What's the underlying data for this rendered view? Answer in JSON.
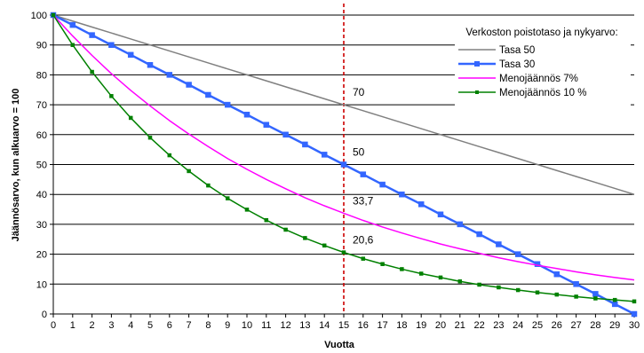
{
  "chart_data": {
    "type": "line",
    "xlabel": "Vuotta",
    "ylabel": "Jäännösarvo, kun alkuarvo = 100",
    "xlim": [
      0,
      30
    ],
    "ylim": [
      0,
      100
    ],
    "x_ticks": [
      0,
      1,
      2,
      3,
      4,
      5,
      6,
      7,
      8,
      9,
      10,
      11,
      12,
      13,
      14,
      15,
      16,
      17,
      18,
      19,
      20,
      21,
      22,
      23,
      24,
      25,
      26,
      27,
      28,
      29,
      30
    ],
    "y_ticks": [
      0,
      10,
      20,
      30,
      40,
      50,
      60,
      70,
      80,
      90,
      100
    ],
    "grid": "horizontal",
    "legend": {
      "title": "Verkoston poistotaso ja nykyarvo:",
      "position": "top-right"
    },
    "x": [
      0,
      1,
      2,
      3,
      4,
      5,
      6,
      7,
      8,
      9,
      10,
      11,
      12,
      13,
      14,
      15,
      16,
      17,
      18,
      19,
      20,
      21,
      22,
      23,
      24,
      25,
      26,
      27,
      28,
      29,
      30
    ],
    "series": [
      {
        "name": "Tasa 50",
        "color": "#808080",
        "marker": "none",
        "values": [
          100,
          98,
          96,
          94,
          92,
          90,
          88,
          86,
          84,
          82,
          80,
          78,
          76,
          74,
          72,
          70,
          68,
          66,
          64,
          62,
          60,
          58,
          56,
          54,
          52,
          50,
          48,
          46,
          44,
          42,
          40
        ]
      },
      {
        "name": "Tasa 30",
        "color": "#3366ff",
        "marker": "square",
        "values": [
          100,
          96.7,
          93.3,
          90,
          86.7,
          83.3,
          80,
          76.7,
          73.3,
          70,
          66.7,
          63.3,
          60,
          56.7,
          53.3,
          50,
          46.7,
          43.3,
          40,
          36.7,
          33.3,
          30,
          26.7,
          23.3,
          20,
          16.7,
          13.3,
          10,
          6.7,
          3.3,
          0
        ]
      },
      {
        "name": "Menojäännös 7%",
        "color": "#ff00ff",
        "marker": "none",
        "values": [
          100,
          93,
          86.5,
          80.4,
          74.8,
          69.6,
          64.7,
          60.2,
          56,
          52,
          48.4,
          45,
          41.9,
          38.9,
          36.2,
          33.7,
          31.3,
          29.1,
          27.1,
          25.2,
          23.4,
          21.8,
          20.3,
          18.8,
          17.5,
          16.3,
          15.2,
          14.1,
          13.1,
          12.2,
          11.4
        ]
      },
      {
        "name": "Menojäännös 10 %",
        "color": "#008000",
        "marker": "square-small",
        "values": [
          100,
          90,
          81,
          72.9,
          65.6,
          59,
          53.1,
          47.8,
          43,
          38.7,
          34.9,
          31.4,
          28.2,
          25.4,
          22.9,
          20.6,
          18.5,
          16.7,
          15,
          13.5,
          12.2,
          10.9,
          9.8,
          8.9,
          8,
          7.2,
          6.5,
          5.8,
          5.2,
          4.7,
          4.2
        ]
      }
    ],
    "reference_line": {
      "x": 15,
      "color": "#cc0000",
      "style": "dashed"
    },
    "annotations": [
      {
        "text": "70",
        "x": 15,
        "y": 70
      },
      {
        "text": "50",
        "x": 15,
        "y": 50
      },
      {
        "text": "33,7",
        "x": 15,
        "y": 33.7
      },
      {
        "text": "20,6",
        "x": 15,
        "y": 20.6
      }
    ]
  }
}
